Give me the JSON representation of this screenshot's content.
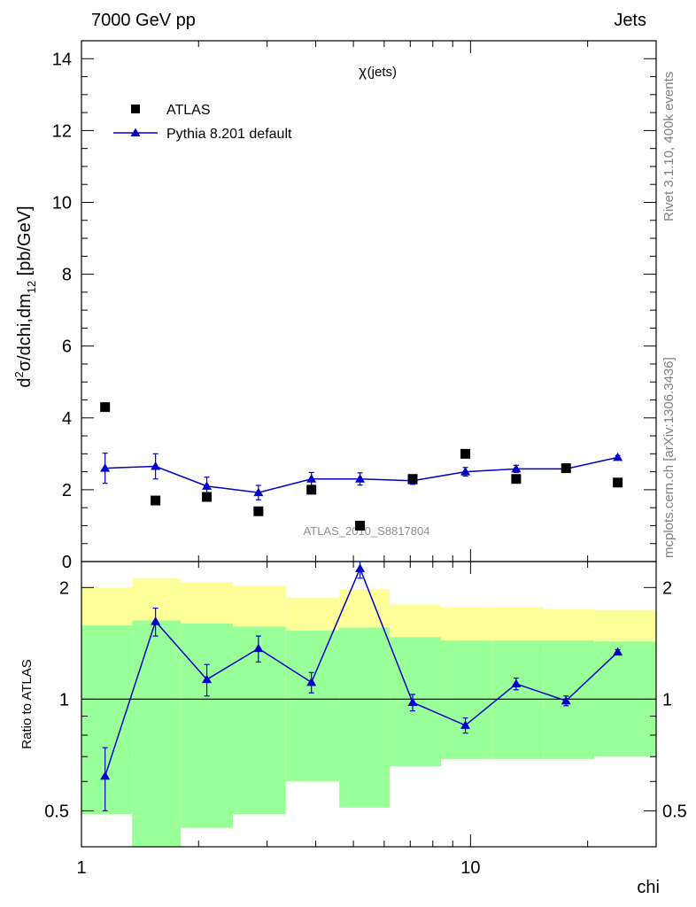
{
  "header": {
    "left": "7000 GeV pp",
    "right": "Jets"
  },
  "side_labels": {
    "rivet": "Rivet 3.1.10,  400k events",
    "mcplots": "mcplots.cern.ch [arXiv:1306.3436]"
  },
  "chart_data": [
    {
      "type": "scatter",
      "panel": "main",
      "title": "χ (jets)",
      "title_symbol": "χ",
      "title_suffix": "(jets)",
      "ylabel": "d²σ/dchi,dm₁₂ [pb/GeV]",
      "ylabel_parts": {
        "d": "d",
        "sup": "2",
        "sigma": "σ/dchi,dm",
        "sub": "12",
        "unit": " [pb/GeV]"
      },
      "xlabel": "chi",
      "x_scale": "log",
      "xlim": [
        1,
        30
      ],
      "ylim": [
        0,
        14.5
      ],
      "yticks": [
        0,
        2,
        4,
        6,
        8,
        10,
        12,
        14
      ],
      "watermark": "ATLAS_2010_S8817804",
      "legend_position": "top-left",
      "series": [
        {
          "name": "ATLAS",
          "marker": "square",
          "color": "#000000",
          "x": [
            1.15,
            1.55,
            2.1,
            2.85,
            3.9,
            5.2,
            7.1,
            9.7,
            13.1,
            17.6,
            23.9
          ],
          "y": [
            4.3,
            1.7,
            1.8,
            1.4,
            2.0,
            1.0,
            2.3,
            3.0,
            2.3,
            2.6,
            2.2
          ]
        },
        {
          "name": "Pythia 8.201 default",
          "marker": "triangle",
          "color": "#0000cc",
          "x": [
            1.15,
            1.55,
            2.1,
            2.85,
            3.9,
            5.2,
            7.1,
            9.7,
            13.1,
            17.6,
            23.9
          ],
          "y": [
            2.6,
            2.65,
            2.1,
            1.92,
            2.3,
            2.3,
            2.25,
            2.5,
            2.58,
            2.58,
            2.9
          ],
          "err": [
            0.42,
            0.35,
            0.25,
            0.2,
            0.18,
            0.17,
            0.1,
            0.12,
            0.1,
            0.08,
            0.05
          ]
        }
      ]
    },
    {
      "type": "scatter",
      "panel": "ratio",
      "ylabel": "Ratio to ATLAS",
      "xlabel": "chi",
      "x_scale": "log",
      "y_scale": "log",
      "xlim": [
        1,
        30
      ],
      "ylim": [
        0.4,
        2.35
      ],
      "yticks": [
        0.5,
        1,
        2
      ],
      "yticklabels": [
        "0.5",
        "1",
        "2"
      ],
      "xticks": [
        1,
        10
      ],
      "xticklabels": [
        "1",
        "10"
      ],
      "bins": [
        1.0,
        1.35,
        1.8,
        2.45,
        3.35,
        4.6,
        6.2,
        8.4,
        11.4,
        15.4,
        20.8,
        30.0
      ],
      "band_outer": {
        "color": "#ffff99",
        "low": [
          0.49,
          0.37,
          0.45,
          0.49,
          0.6,
          0.51,
          0.66,
          0.69,
          0.69,
          0.69,
          0.7
        ],
        "high": [
          2.0,
          2.12,
          2.07,
          2.02,
          1.88,
          1.98,
          1.8,
          1.77,
          1.77,
          1.75,
          1.74
        ]
      },
      "band_inner": {
        "color": "#99ff99",
        "low": [
          0.49,
          0.37,
          0.45,
          0.49,
          0.6,
          0.51,
          0.66,
          0.69,
          0.69,
          0.69,
          0.7
        ],
        "high": [
          1.58,
          1.63,
          1.6,
          1.57,
          1.53,
          1.56,
          1.47,
          1.44,
          1.44,
          1.44,
          1.43
        ]
      },
      "series": [
        {
          "name": "Pythia 8.201 default",
          "color": "#0000cc",
          "x": [
            1.15,
            1.55,
            2.1,
            2.85,
            3.9,
            5.2,
            7.1,
            9.7,
            13.1,
            17.6,
            23.9
          ],
          "y": [
            0.62,
            1.62,
            1.13,
            1.37,
            1.11,
            2.25,
            0.98,
            0.85,
            1.1,
            0.99,
            1.34
          ],
          "err_low": [
            0.12,
            0.14,
            0.11,
            0.11,
            0.07,
            0.13,
            0.05,
            0.04,
            0.04,
            0.03,
            0.02
          ],
          "err_high": [
            0.12,
            0.14,
            0.11,
            0.11,
            0.07,
            0.13,
            0.05,
            0.04,
            0.04,
            0.03,
            0.02
          ]
        }
      ]
    }
  ]
}
